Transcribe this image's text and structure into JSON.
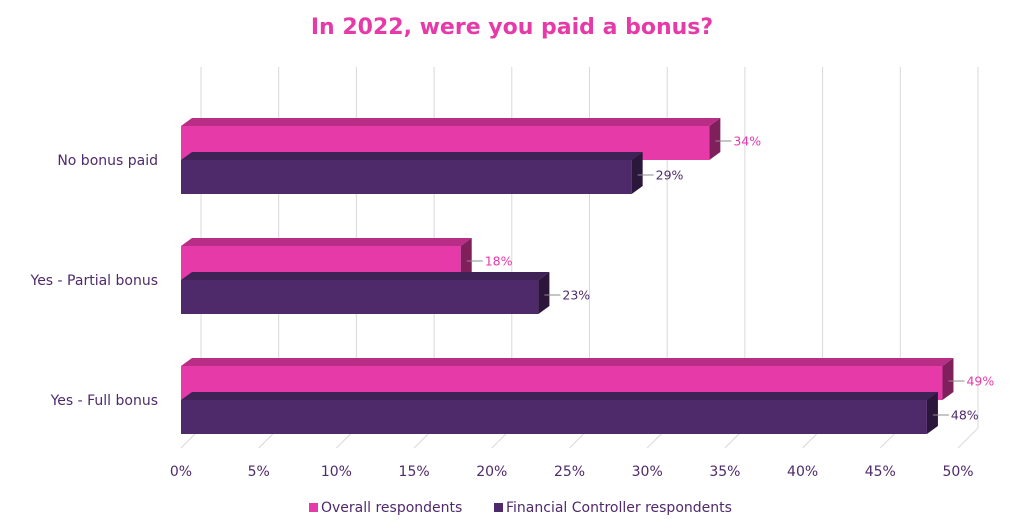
{
  "chart_data": {
    "type": "bar",
    "orientation": "horizontal",
    "title": "In 2022, were you paid a bonus?",
    "categories": [
      "No bonus paid",
      "Yes - Partial bonus",
      "Yes - Full bonus"
    ],
    "series": [
      {
        "name": "Overall respondents",
        "values": [
          34,
          18,
          49
        ],
        "labels": [
          "34%",
          "18%",
          "49%"
        ],
        "color": "#e63aa8"
      },
      {
        "name": "Financial Controller respondents",
        "values": [
          29,
          23,
          48
        ],
        "labels": [
          "29%",
          "23%",
          "48%"
        ],
        "color": "#4f2a6b"
      }
    ],
    "xlim": [
      0,
      50
    ],
    "xticks": [
      0,
      5,
      10,
      15,
      20,
      25,
      30,
      35,
      40,
      45,
      50
    ],
    "xtick_labels": [
      "0%",
      "5%",
      "10%",
      "15%",
      "20%",
      "25%",
      "30%",
      "35%",
      "40%",
      "45%",
      "50%"
    ],
    "grid": true,
    "legend_position": "bottom",
    "title_color": "#e63aa8",
    "label_color": "#4f2a6b"
  }
}
